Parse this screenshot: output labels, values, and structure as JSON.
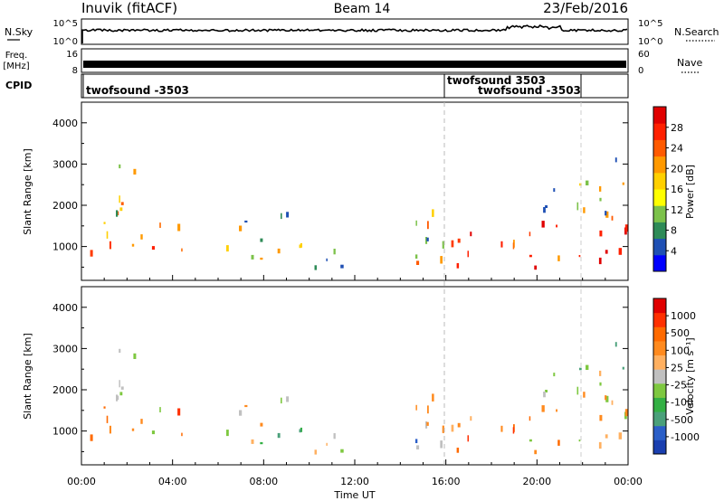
{
  "header": {
    "station": "Inuvik  (fitACF)",
    "beam": "Beam 14",
    "date": "23/Feb/2016"
  },
  "chart_data": {
    "type": "heatmap",
    "x_axis": {
      "label": "Time UT",
      "ticks": [
        "00:00",
        "04:00",
        "08:00",
        "12:00",
        "16:00",
        "20:00",
        "00:00"
      ],
      "range_hours": [
        0,
        24
      ]
    },
    "panels": {
      "nsky": {
        "left_label": "N.Sky",
        "right_label": "N.Search",
        "left_ticks": [
          "10^5",
          "10^0"
        ],
        "right_ticks": [
          "10^5",
          "10^0"
        ]
      },
      "freq": {
        "left_label_1": "Freq.",
        "left_label_2": "[MHz]",
        "right_label": "Nave",
        "left_ticks": [
          "16",
          "8"
        ],
        "right_ticks": [
          "60",
          "0"
        ]
      },
      "cpid": {
        "label": "CPID",
        "programs": [
          {
            "name": "twofsound -3503",
            "start_hour": 0
          },
          {
            "name": "twofsound 3503",
            "start_hour": 16
          },
          {
            "name": "twofsound -3503",
            "start_hour": 16.2
          }
        ]
      },
      "power": {
        "ylabel": "Slant Range [km]",
        "yticks": [
          "4000",
          "3000",
          "2000",
          "1000"
        ],
        "ylim": [
          180,
          4500
        ],
        "colorbar_label": "Power [dB]",
        "colorbar_ticks": [
          "28",
          "24",
          "20",
          "16",
          "12",
          "8",
          "4"
        ],
        "colorbar_colors": [
          "#0000ff",
          "#1f50b4",
          "#2e8b57",
          "#7cc24a",
          "#ffff00",
          "#ffd000",
          "#ff9900",
          "#ff5a00",
          "#ff2000",
          "#e00000"
        ]
      },
      "velocity": {
        "ylabel": "Slant Range [km]",
        "yticks": [
          "4000",
          "3000",
          "2000",
          "1000"
        ],
        "ylim": [
          180,
          4500
        ],
        "colorbar_label": "Velocity  [m s⁻¹]",
        "colorbar_ticks": [
          "1000",
          "500",
          "100",
          "25",
          "-25",
          "-100",
          "-500",
          "-1000"
        ],
        "colorbar_colors": [
          "#1a3fb0",
          "#2b5fc8",
          "#4aa07a",
          "#33b044",
          "#7ec840",
          "#c0c0c0",
          "#ffb060",
          "#ff8a1e",
          "#ff6a00",
          "#ff3000",
          "#e00000"
        ]
      }
    },
    "scatter_regions": [
      {
        "t0": 0.0,
        "t1": 2.8,
        "r0": 600,
        "r1": 1600,
        "power": "strong",
        "velocity": "orange"
      },
      {
        "t0": 0.5,
        "t1": 2.8,
        "r0": 1700,
        "r1": 3000,
        "power": "mixed",
        "velocity": "grey"
      },
      {
        "t0": 2.8,
        "t1": 4.6,
        "r0": 600,
        "r1": 1700,
        "power": "strong",
        "velocity": "orange"
      },
      {
        "t0": 5.5,
        "t1": 9.0,
        "r0": 700,
        "r1": 1800,
        "power": "mixed",
        "velocity": "green-orange"
      },
      {
        "t0": 9.0,
        "t1": 12.0,
        "r0": 250,
        "r1": 1200,
        "power": "moderate",
        "velocity": "green"
      },
      {
        "t0": 13.0,
        "t1": 16.0,
        "r0": 600,
        "r1": 1900,
        "power": "moderate",
        "velocity": "blue-orange"
      },
      {
        "t0": 16.0,
        "t1": 24.0,
        "r0": 400,
        "r1": 1600,
        "power": "strong",
        "velocity": "orange"
      },
      {
        "t0": 20.0,
        "t1": 24.0,
        "r0": 1600,
        "r1": 3200,
        "power": "mixed",
        "velocity": "mixed"
      }
    ]
  }
}
